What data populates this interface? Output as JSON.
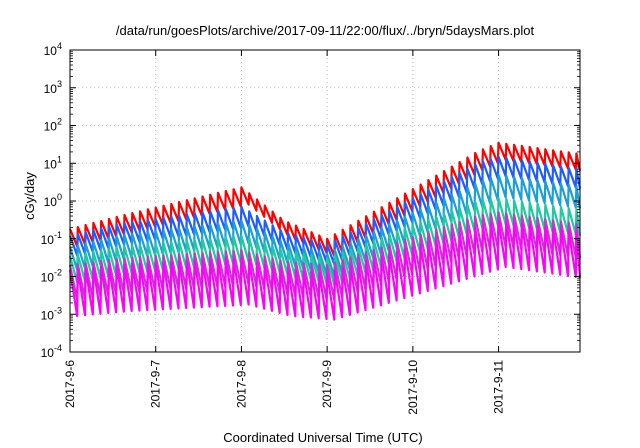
{
  "chart_data": {
    "type": "line",
    "title": "/data/run/goesPlots/archive/2017-09-11/22:00/flux/../bryn/5daysMars.plot",
    "xlabel": "Coordinated Universal Time (UTC)",
    "ylabel": "cGy/day",
    "yscale": "log",
    "ylim_exponents": [
      -4,
      4
    ],
    "y_tick_labels": [
      {
        "base": "10",
        "exp": "-4"
      },
      {
        "base": "10",
        "exp": "-3"
      },
      {
        "base": "10",
        "exp": "-2"
      },
      {
        "base": "10",
        "exp": "-1"
      },
      {
        "base": "10",
        "exp": "0"
      },
      {
        "base": "10",
        "exp": "1"
      },
      {
        "base": "10",
        "exp": "2"
      },
      {
        "base": "10",
        "exp": "3"
      },
      {
        "base": "10",
        "exp": "4"
      }
    ],
    "x_tick_labels": [
      "2017-9-6",
      "2017-9-7",
      "2017-9-8",
      "2017-9-9",
      "2017-9-10",
      "2017-9-11"
    ],
    "x_domain_days": [
      0,
      5.95
    ],
    "grid": true,
    "sawtooth_period_days": 0.0909,
    "series": [
      {
        "color": "#ff0000",
        "peak_levels": [
          {
            "from": "2017-9-6",
            "value": 0.18
          },
          {
            "from": "2017-9-6 14:00",
            "value": 0.4
          },
          {
            "from": "2017-9-8 00:00",
            "value": 2.3
          },
          {
            "from": "2017-9-8 12:00",
            "value": 0.3
          },
          {
            "from": "2017-9-9 00:00",
            "value": 0.1
          },
          {
            "from": "2017-9-10 18:00",
            "value": 20
          },
          {
            "from": "2017-9-11 00:00",
            "value": 35
          },
          {
            "from": "2017-9-11 22:00",
            "value": 18
          }
        ],
        "trough_ratio": 0.35
      },
      {
        "color": "#1e5cff",
        "peak_levels": [
          {
            "from": "2017-9-6",
            "value": 0.12
          },
          {
            "from": "2017-9-6 14:00",
            "value": 0.25
          },
          {
            "from": "2017-9-8 00:00",
            "value": 0.7
          },
          {
            "from": "2017-9-8 12:00",
            "value": 0.15
          },
          {
            "from": "2017-9-9 00:00",
            "value": 0.07
          },
          {
            "from": "2017-9-10 18:00",
            "value": 10
          },
          {
            "from": "2017-9-11 00:00",
            "value": 15
          },
          {
            "from": "2017-9-11 22:00",
            "value": 7
          }
        ],
        "trough_ratio": 0.3
      },
      {
        "color": "#1a9fd6",
        "peak_levels": [
          {
            "from": "2017-9-6",
            "value": 0.06
          },
          {
            "from": "2017-9-6 14:00",
            "value": 0.12
          },
          {
            "from": "2017-9-8 00:00",
            "value": 0.3
          },
          {
            "from": "2017-9-8 12:00",
            "value": 0.08
          },
          {
            "from": "2017-9-9 00:00",
            "value": 0.04
          },
          {
            "from": "2017-9-10 18:00",
            "value": 3
          },
          {
            "from": "2017-9-11 00:00",
            "value": 5
          },
          {
            "from": "2017-9-11 22:00",
            "value": 2.5
          }
        ],
        "trough_ratio": 0.25
      },
      {
        "color": "#20c9a0",
        "peak_levels": [
          {
            "from": "2017-9-6",
            "value": 0.035
          },
          {
            "from": "2017-9-6 14:00",
            "value": 0.06
          },
          {
            "from": "2017-9-8 00:00",
            "value": 0.12
          },
          {
            "from": "2017-9-8 12:00",
            "value": 0.05
          },
          {
            "from": "2017-9-9 00:00",
            "value": 0.03
          },
          {
            "from": "2017-9-10 18:00",
            "value": 1.0
          },
          {
            "from": "2017-9-11 00:00",
            "value": 1.2
          },
          {
            "from": "2017-9-11 22:00",
            "value": 0.6
          }
        ],
        "trough_ratio": 0.2
      },
      {
        "color": "#c03ac8",
        "peak_levels": [
          {
            "from": "2017-9-6",
            "value": 0.02
          },
          {
            "from": "2017-9-6 14:00",
            "value": 0.03
          },
          {
            "from": "2017-9-8 00:00",
            "value": 0.05
          },
          {
            "from": "2017-9-8 12:00",
            "value": 0.025
          },
          {
            "from": "2017-9-9 00:00",
            "value": 0.02
          },
          {
            "from": "2017-9-10 18:00",
            "value": 0.4
          },
          {
            "from": "2017-9-11 00:00",
            "value": 0.5
          },
          {
            "from": "2017-9-11 22:00",
            "value": 0.25
          }
        ],
        "trough_ratio": 0.12
      },
      {
        "color": "#ff00ff",
        "peak_levels": [
          {
            "from": "2017-9-6",
            "value": 0.015
          },
          {
            "from": "2017-9-6 14:00",
            "value": 0.02
          },
          {
            "from": "2017-9-8 00:00",
            "value": 0.03
          },
          {
            "from": "2017-9-8 12:00",
            "value": 0.015
          },
          {
            "from": "2017-9-9 00:00",
            "value": 0.012
          },
          {
            "from": "2017-9-10 18:00",
            "value": 0.2
          },
          {
            "from": "2017-9-11 00:00",
            "value": 0.3
          },
          {
            "from": "2017-9-11 22:00",
            "value": 0.15
          }
        ],
        "trough_ratio": 0.06
      }
    ]
  }
}
